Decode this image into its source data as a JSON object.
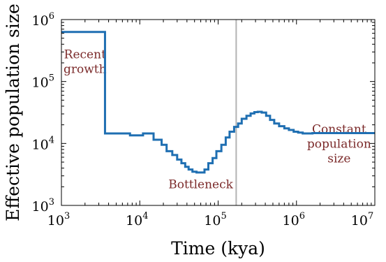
{
  "chart_data": {
    "type": "line",
    "title": "",
    "xlabel": "Time (kya)",
    "ylabel": "Effective population size",
    "xscale": "log",
    "yscale": "log",
    "xlim": [
      1000,
      10000000
    ],
    "ylim": [
      1000,
      1000000
    ],
    "grid": false,
    "legend": "none",
    "line_color": "#1f6fb2",
    "marker_line_color": "#b3b3b3",
    "annotation_color": "#7b2a2a",
    "x_ticks": [
      {
        "base": "10",
        "exp": "3",
        "value": 1000
      },
      {
        "base": "10",
        "exp": "4",
        "value": 10000
      },
      {
        "base": "10",
        "exp": "5",
        "value": 100000
      },
      {
        "base": "10",
        "exp": "6",
        "value": 1000000
      },
      {
        "base": "10",
        "exp": "7",
        "value": 10000000
      }
    ],
    "y_ticks": [
      {
        "base": "10",
        "exp": "3",
        "value": 1000
      },
      {
        "base": "10",
        "exp": "4",
        "value": 10000
      },
      {
        "base": "10",
        "exp": "5",
        "value": 100000
      },
      {
        "base": "10",
        "exp": "6",
        "value": 1000000
      }
    ],
    "vertical_line_x": 170000,
    "series": [
      {
        "step": true,
        "x": [
          1000,
          3600,
          7500,
          11000,
          15000,
          19000,
          22000,
          26000,
          30000,
          34000,
          38000,
          42000,
          47000,
          53000,
          60000,
          67000,
          75000,
          85000,
          95000,
          110000,
          125000,
          140000,
          160000,
          180000,
          200000,
          230000,
          260000,
          290000,
          320000,
          360000,
          410000,
          460000,
          520000,
          600000,
          700000,
          800000,
          920000,
          1050000,
          1200000,
          1400000,
          1600000,
          1800000,
          10000000
        ],
        "y": [
          630000,
          14500,
          13500,
          14500,
          11500,
          9500,
          7500,
          6500,
          5500,
          4800,
          4200,
          3800,
          3500,
          3400,
          3400,
          3800,
          4800,
          5800,
          7500,
          9500,
          12500,
          15500,
          18500,
          21000,
          25000,
          28000,
          30500,
          32000,
          32500,
          31500,
          28000,
          24000,
          21000,
          19000,
          17500,
          16500,
          15500,
          15000,
          14500,
          14500,
          14700,
          14700,
          14700
        ]
      }
    ],
    "annotations": [
      {
        "lines": [
          "Recent",
          "growth"
        ],
        "x": 2000,
        "y": 180000
      },
      {
        "lines": [
          "Bottleneck"
        ],
        "x": 60000,
        "y": 1900
      },
      {
        "lines": [
          "Constant",
          "population",
          "size"
        ],
        "x": 3500000,
        "y": 8500
      }
    ]
  }
}
